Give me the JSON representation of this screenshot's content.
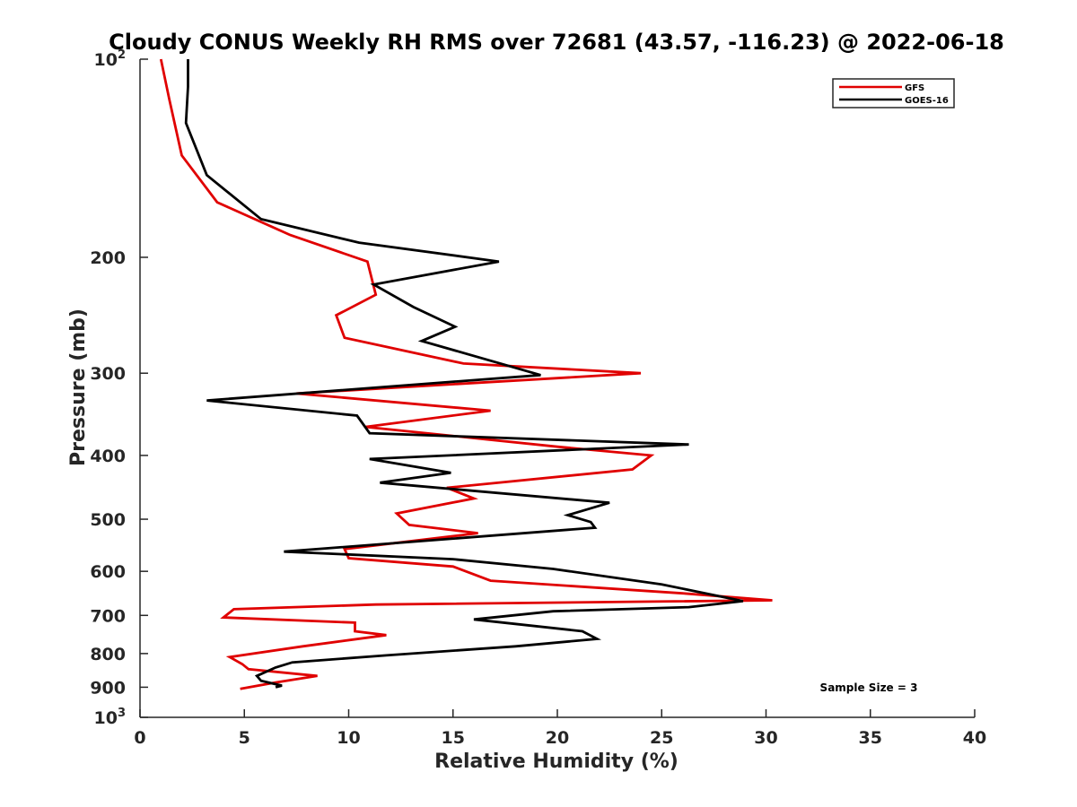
{
  "chart_data": {
    "type": "line",
    "title": "Cloudy CONUS Weekly RH RMS over 72681 (43.57, -116.23) @ 2022-06-18",
    "xlabel": "Relative Humidity (%)",
    "ylabel": "Pressure (mb)",
    "xlim": [
      0,
      40
    ],
    "ylim": [
      100,
      1000
    ],
    "y_scale": "log",
    "y_reversed": true,
    "x_ticks": [
      "0",
      "5",
      "10",
      "15",
      "20",
      "25",
      "30",
      "35",
      "40"
    ],
    "y_ticks": [
      {
        "value": 100,
        "base": "10",
        "exp": "2"
      },
      {
        "value": 200,
        "label": "200"
      },
      {
        "value": 300,
        "label": "300"
      },
      {
        "value": 400,
        "label": "400"
      },
      {
        "value": 500,
        "label": "500"
      },
      {
        "value": 600,
        "label": "600"
      },
      {
        "value": 700,
        "label": "700"
      },
      {
        "value": 800,
        "label": "800"
      },
      {
        "value": 900,
        "label": "900"
      },
      {
        "value": 1000,
        "base": "10",
        "exp": "3"
      }
    ],
    "grid": false,
    "legend_position": "top-right",
    "annotation": "Sample Size = 3",
    "series": [
      {
        "name": "GFS",
        "color": "#e00000",
        "x": [
          1.0,
          1.4,
          2.0,
          3.7,
          7.2,
          10.9,
          11.3,
          9.4,
          9.8,
          15.5,
          24.0,
          7.5,
          16.8,
          10.8,
          20.0,
          24.5,
          23.6,
          14.7,
          16.0,
          12.3,
          12.9,
          16.2,
          9.8,
          10.0,
          15.0,
          16.8,
          26.0,
          30.3,
          11.3,
          4.5,
          4.0,
          10.3,
          10.3,
          11.8,
          7.8,
          4.3,
          4.9,
          5.2,
          8.5,
          6.5,
          4.8
        ],
        "y": [
          100,
          115,
          140,
          165,
          185,
          203,
          228,
          245,
          265,
          290,
          300,
          322,
          342,
          362,
          388,
          400,
          420,
          448,
          465,
          490,
          510,
          525,
          555,
          573,
          590,
          620,
          648,
          664,
          674,
          685,
          705,
          718,
          740,
          750,
          780,
          810,
          830,
          845,
          865,
          885,
          905
        ]
      },
      {
        "name": "GOES-16",
        "color": "#000000",
        "x": [
          2.3,
          2.3,
          2.2,
          3.2,
          5.8,
          10.5,
          17.2,
          11.2,
          13.1,
          15.1,
          13.5,
          19.2,
          3.2,
          10.4,
          11.0,
          26.3,
          11.0,
          14.9,
          11.5,
          22.5,
          20.5,
          21.6,
          21.8,
          6.9,
          15.0,
          19.8,
          25.0,
          28.9,
          26.3,
          19.8,
          16.0,
          21.2,
          21.9,
          18.0,
          11.8,
          7.3,
          6.5,
          5.6,
          5.8,
          6.8,
          6.5
        ],
        "y": [
          100,
          110,
          125,
          150,
          175,
          190,
          203,
          220,
          238,
          255,
          268,
          302,
          330,
          348,
          370,
          385,
          405,
          425,
          440,
          472,
          493,
          505,
          515,
          560,
          575,
          595,
          628,
          666,
          680,
          690,
          710,
          740,
          760,
          780,
          805,
          825,
          840,
          865,
          880,
          895,
          900
        ]
      }
    ]
  }
}
